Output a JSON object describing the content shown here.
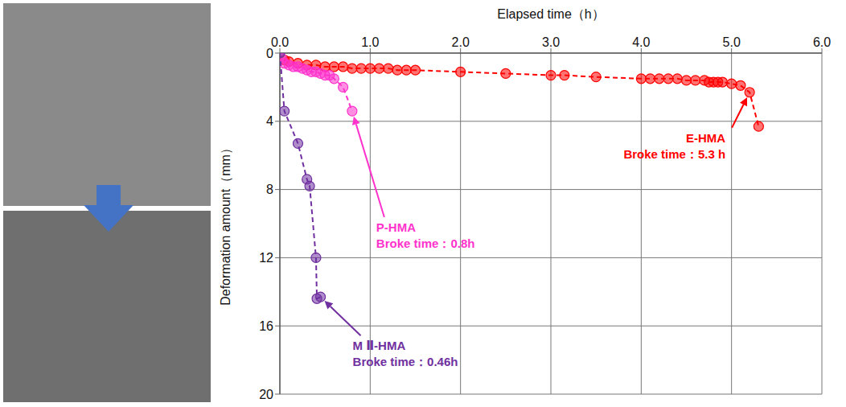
{
  "chart_data": {
    "type": "line",
    "x_label": "Elapsed time（h）",
    "y_label": "Deformation amount（mm）",
    "xlim": [
      0,
      6
    ],
    "xticks": [
      {
        "value": 0,
        "label": "0.0"
      },
      {
        "value": 1,
        "label": "1.0"
      },
      {
        "value": 2,
        "label": "2.0"
      },
      {
        "value": 3,
        "label": "3.0"
      },
      {
        "value": 4,
        "label": "4.0"
      },
      {
        "value": 5,
        "label": "5.0"
      },
      {
        "value": 6,
        "label": "6.0"
      }
    ],
    "ylim": [
      0,
      20
    ],
    "yticks": [
      0,
      4,
      8,
      12,
      16,
      20
    ],
    "y_reversed": true,
    "grid": true,
    "series": [
      {
        "name": "E-HMA",
        "color": "#ff0000",
        "marker": "circle",
        "line_style": "dashed",
        "x": [
          0.05,
          0.1,
          0.2,
          0.3,
          0.4,
          0.5,
          0.6,
          0.7,
          0.8,
          0.9,
          1.0,
          1.1,
          1.2,
          1.3,
          1.4,
          1.5,
          2.0,
          2.5,
          3.0,
          3.15,
          3.5,
          4.0,
          4.1,
          4.2,
          4.3,
          4.4,
          4.5,
          4.6,
          4.7,
          4.75,
          4.8,
          4.85,
          4.9,
          5.0,
          5.1,
          5.2,
          5.3
        ],
        "values": [
          0.4,
          0.5,
          0.6,
          0.7,
          0.7,
          0.8,
          0.8,
          0.8,
          0.9,
          0.9,
          0.9,
          0.9,
          0.9,
          1.0,
          1.0,
          1.0,
          1.1,
          1.2,
          1.3,
          1.3,
          1.4,
          1.5,
          1.5,
          1.5,
          1.5,
          1.5,
          1.6,
          1.6,
          1.6,
          1.7,
          1.7,
          1.7,
          1.7,
          1.8,
          1.9,
          2.3,
          4.3
        ],
        "annotation": {
          "text": "Broke time：5.3 h",
          "x": 5.2,
          "y": 2.3
        }
      },
      {
        "name": "P-HMA",
        "color": "#ff33cc",
        "marker": "circle",
        "line_style": "dashed",
        "x": [
          0.02,
          0.05,
          0.1,
          0.15,
          0.2,
          0.25,
          0.3,
          0.35,
          0.4,
          0.45,
          0.5,
          0.55,
          0.6,
          0.7,
          0.8
        ],
        "values": [
          0.3,
          0.6,
          0.7,
          0.8,
          0.8,
          0.9,
          1.0,
          1.1,
          1.1,
          1.2,
          1.3,
          1.3,
          1.5,
          2.0,
          3.4
        ],
        "annotation": {
          "text": "Broke time：0.8h",
          "x": 0.8,
          "y": 3.4
        }
      },
      {
        "name": "M Ⅱ-HMA",
        "color": "#7030a0",
        "marker": "circle",
        "line_style": "dashed",
        "x": [
          0,
          0.05,
          0.2,
          0.3,
          0.33,
          0.4,
          0.41,
          0.45
        ],
        "values": [
          0,
          3.4,
          5.3,
          7.4,
          7.8,
          12.0,
          14.4,
          14.3
        ],
        "annotation": {
          "text": "Broke time：0.46h",
          "x": 0.45,
          "y": 14.3
        }
      }
    ]
  }
}
